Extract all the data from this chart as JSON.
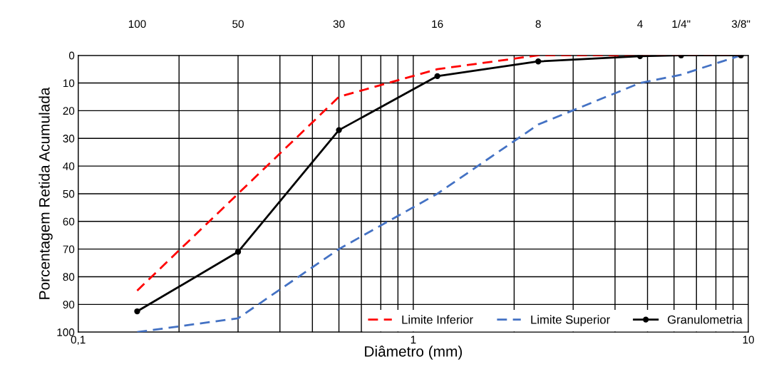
{
  "chart_data": {
    "type": "line",
    "xlabel": "Diâmetro (mm)",
    "ylabel": "Porcentagem Retida Acumulada",
    "x": [
      0.15,
      0.3,
      0.6,
      1.18,
      2.36,
      4.75,
      6.3,
      9.5
    ],
    "series": [
      {
        "name": "Limite Inferior",
        "color": "#ff0000",
        "line_style": "dashed",
        "marker": "none",
        "values": [
          85,
          50,
          15,
          5,
          0,
          0,
          0,
          0
        ]
      },
      {
        "name": "Limite Superior",
        "color": "#4472c4",
        "line_style": "dashed",
        "marker": "none",
        "values": [
          100,
          95,
          70,
          50,
          25,
          10,
          7,
          0
        ]
      },
      {
        "name": "Granulometria",
        "color": "#000000",
        "line_style": "solid",
        "marker": "circle",
        "values": [
          92.5,
          71,
          27,
          7.5,
          2.2,
          0.3,
          0,
          0
        ]
      }
    ],
    "log": "x",
    "xlim": [
      0.1,
      10
    ],
    "xticks": [
      {
        "value": 0.1,
        "label": "0,1"
      },
      {
        "value": 0.2,
        "label": null
      },
      {
        "value": 0.3,
        "label": null
      },
      {
        "value": 0.4,
        "label": null
      },
      {
        "value": 0.5,
        "label": null
      },
      {
        "value": 0.6,
        "label": null
      },
      {
        "value": 0.7,
        "label": null
      },
      {
        "value": 0.8,
        "label": null
      },
      {
        "value": 0.9,
        "label": null
      },
      1,
      {
        "value": 2,
        "label": null
      },
      {
        "value": 3,
        "label": null
      },
      {
        "value": 4,
        "label": null
      },
      {
        "value": 5,
        "label": null
      },
      {
        "value": 6,
        "label": null
      },
      {
        "value": 7,
        "label": null
      },
      {
        "value": 8,
        "label": null
      },
      {
        "value": 9,
        "label": null
      },
      10
    ],
    "annotations": [
      "100",
      "50",
      "30",
      "16",
      "8",
      "4",
      "1/4\"",
      "3/8\""
    ],
    "ylim": [
      100,
      0
    ],
    "yticks": [
      0,
      10,
      20,
      30,
      40,
      50,
      60,
      70,
      80,
      90,
      100
    ],
    "grid": true,
    "legend": "bottom right"
  }
}
